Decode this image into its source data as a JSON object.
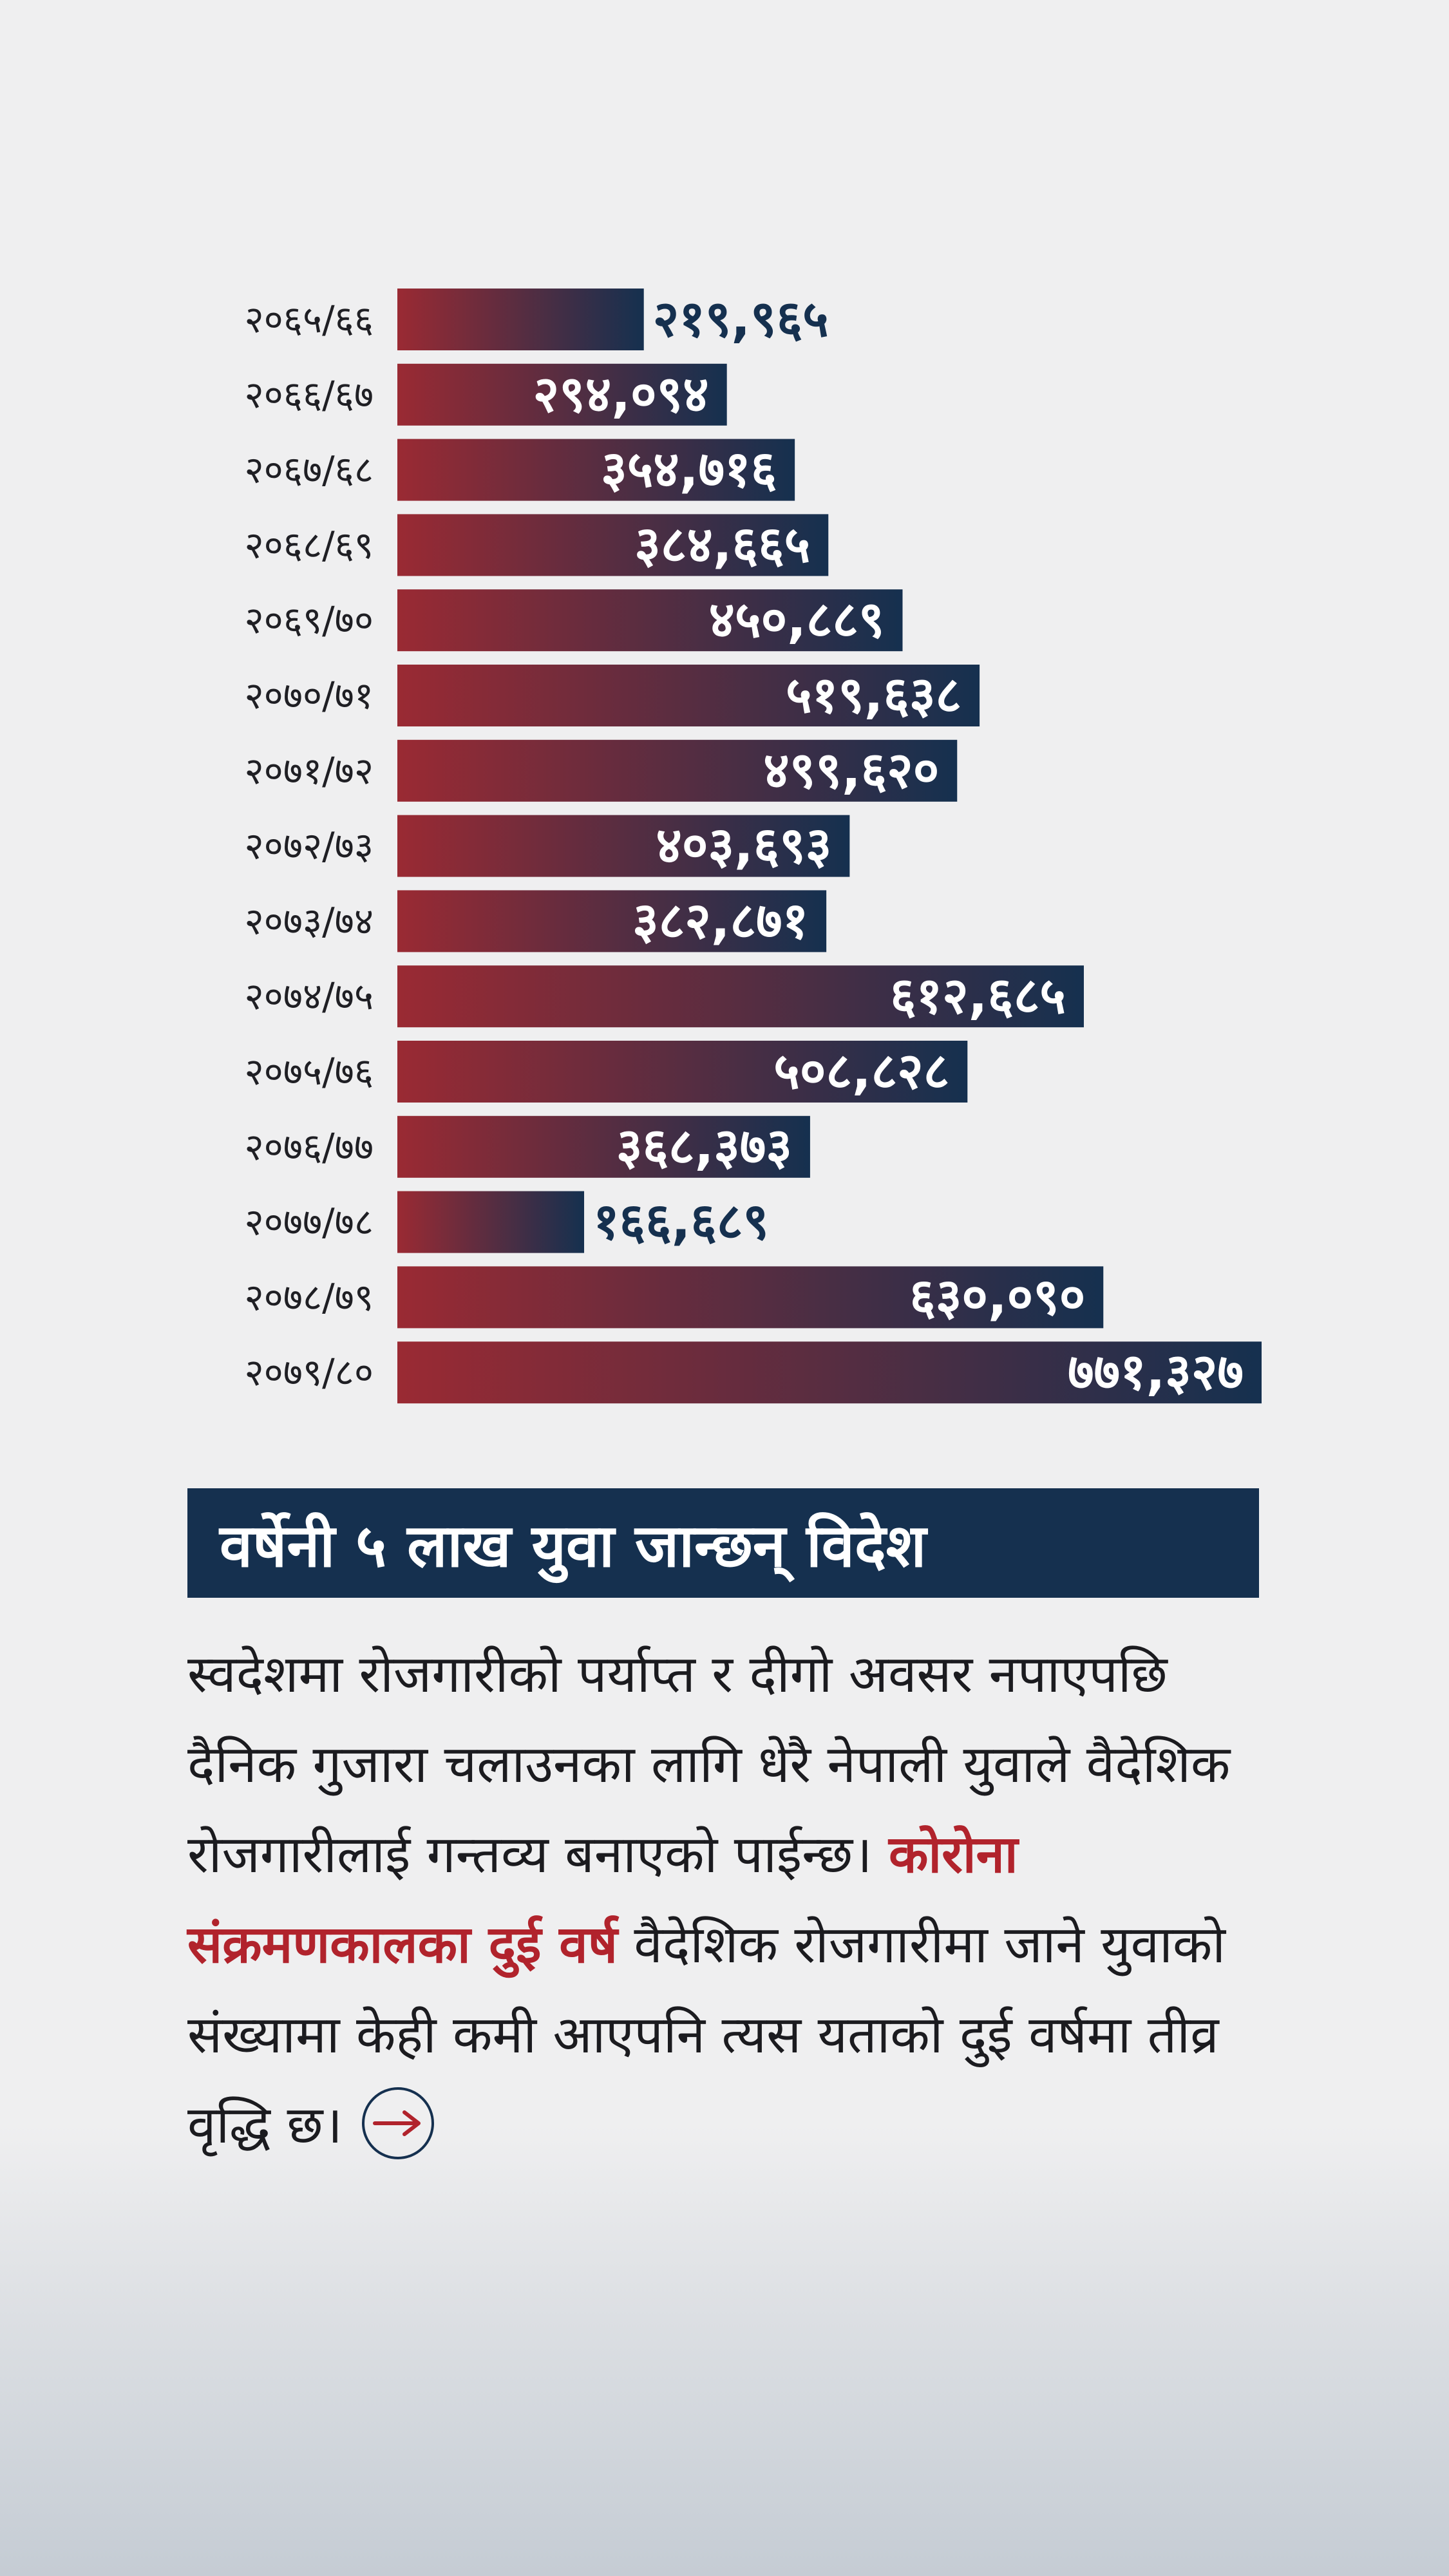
{
  "chart_data": {
    "type": "bar",
    "orientation": "horizontal",
    "categories": [
      "२०६५/६६",
      "२०६६/६७",
      "२०६७/६८",
      "२०६८/६९",
      "२०६९/७०",
      "२०७०/७१",
      "२०७१/७२",
      "२०७२/७३",
      "२०७३/७४",
      "२०७४/७५",
      "२०७५/७६",
      "२०७६/७७",
      "२०७७/७८",
      "२०७८/७९",
      "२०७९/८०"
    ],
    "values": [
      219965,
      294094,
      354716,
      384665,
      450889,
      519638,
      499620,
      403693,
      382871,
      612685,
      508828,
      368373,
      166689,
      630090,
      771327
    ],
    "value_labels": [
      "२१९,९६५",
      "२९४,०९४",
      "३५४,७१६",
      "३८४,६६५",
      "४५०,८८९",
      "५१९,६३८",
      "४९९,६२०",
      "४०३,६९३",
      "३८२,८७१",
      "६१२,६८५",
      "५०८,८२८",
      "३६८,३७३",
      "१६६,६८९",
      "६३०,०९०",
      "७७१,३२७"
    ],
    "colors": {
      "gradient_start": "#9a2a33",
      "gradient_end": "#15304f"
    }
  },
  "headline": "वर्षेनी ५ लाख युवा जान्छन् विदेश",
  "body": {
    "intro": "स्वदेशमा रोजगारीको पर्याप्त र दीगो अवसर नपाएपछि दैनिक गुजारा चलाउनका लागि धेरै नेपाली युवाले वैदेशिक रोजगारीलाई गन्तव्य बनाएको पाईन्छ।",
    "highlight": "कोरोना संक्रमणकालका दुई वर्ष",
    "rest": "वैदेशिक रोजगारीमा जाने युवाको संख्यामा केही कमी आएपनि त्यस यताको दुई वर्षमा तीव्र वृद्धि छ।"
  },
  "icons": {
    "arrow": "arrow-right-icon"
  }
}
